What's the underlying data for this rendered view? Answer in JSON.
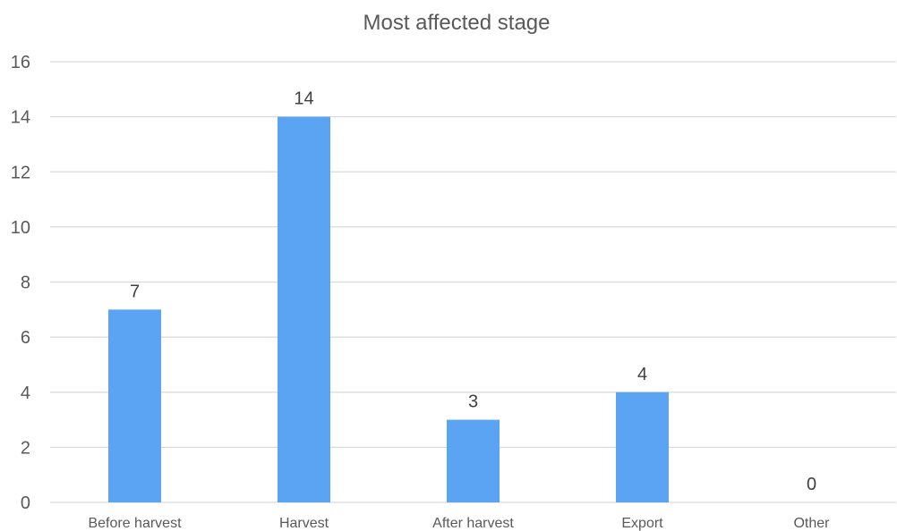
{
  "chart_data": {
    "type": "bar",
    "title": "Most affected stage",
    "categories": [
      "Before harvest",
      "Harvest",
      "After harvest",
      "Export",
      "Other"
    ],
    "values": [
      7,
      14,
      3,
      4,
      0
    ],
    "data_labels": [
      "7",
      "14",
      "3",
      "4",
      "0"
    ],
    "ylim": [
      0,
      16
    ],
    "yticks": [
      0,
      2,
      4,
      6,
      8,
      10,
      12,
      14,
      16
    ],
    "ytick_labels": [
      "0",
      "2",
      "4",
      "6",
      "8",
      "10",
      "12",
      "14",
      "16"
    ],
    "xlabel": "",
    "ylabel": "",
    "grid": true,
    "legend": "none",
    "bar_color": "#5ba3f3"
  }
}
